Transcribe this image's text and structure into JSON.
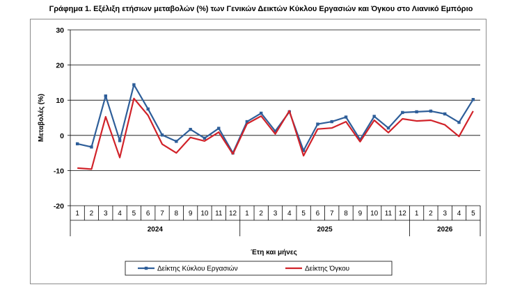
{
  "chart_data": {
    "type": "line",
    "title": "Γράφημα 1. Εξέλιξη ετήσιων μεταβολών (%) των Γενικών Δεικτών Κύκλου Εργασιών και Όγκου στο Λιανικό Εμπόριο",
    "xlabel": "Έτη και μήνες",
    "ylabel": "Μεταβολές (%)",
    "ylim": [
      -20,
      30
    ],
    "yticks": [
      -20,
      -10,
      0,
      10,
      20,
      30
    ],
    "grid": "horizontal",
    "legend_position": "bottom",
    "month_labels": [
      "1",
      "2",
      "3",
      "4",
      "5",
      "6",
      "7",
      "8",
      "9",
      "10",
      "11",
      "12",
      "1",
      "2",
      "3",
      "4",
      "5",
      "6",
      "7",
      "8",
      "9",
      "10",
      "11",
      "12",
      "1",
      "2",
      "3",
      "4",
      "5"
    ],
    "year_groups": [
      {
        "year": "2024",
        "months": 12
      },
      {
        "year": "2025",
        "months": 12
      },
      {
        "year": "2026",
        "months": 5
      }
    ],
    "series": [
      {
        "name": "Δείκτης Κύκλου Εργασιών",
        "color": "#2e5e99",
        "marker": "square",
        "values": [
          -2.4,
          -3.3,
          11.2,
          -1.5,
          14.4,
          7.5,
          0.1,
          -1.7,
          1.7,
          -0.8,
          2.0,
          -5.0,
          3.9,
          6.3,
          1.2,
          6.7,
          -4.3,
          3.2,
          3.9,
          5.2,
          -1.2,
          5.4,
          2.1,
          6.5,
          6.7,
          6.9,
          6.1,
          3.7,
          10.2
        ]
      },
      {
        "name": "Δείκτης Όγκου",
        "color": "#d12229",
        "marker": "none",
        "values": [
          -9.3,
          -9.6,
          5.3,
          -6.3,
          10.5,
          5.7,
          -2.5,
          -5.0,
          -0.6,
          -1.6,
          0.9,
          -5.3,
          3.3,
          5.5,
          0.4,
          7.0,
          -5.8,
          1.8,
          2.1,
          3.9,
          -1.8,
          4.3,
          0.8,
          4.7,
          4.1,
          4.3,
          3.0,
          -0.3,
          6.9
        ]
      }
    ]
  }
}
